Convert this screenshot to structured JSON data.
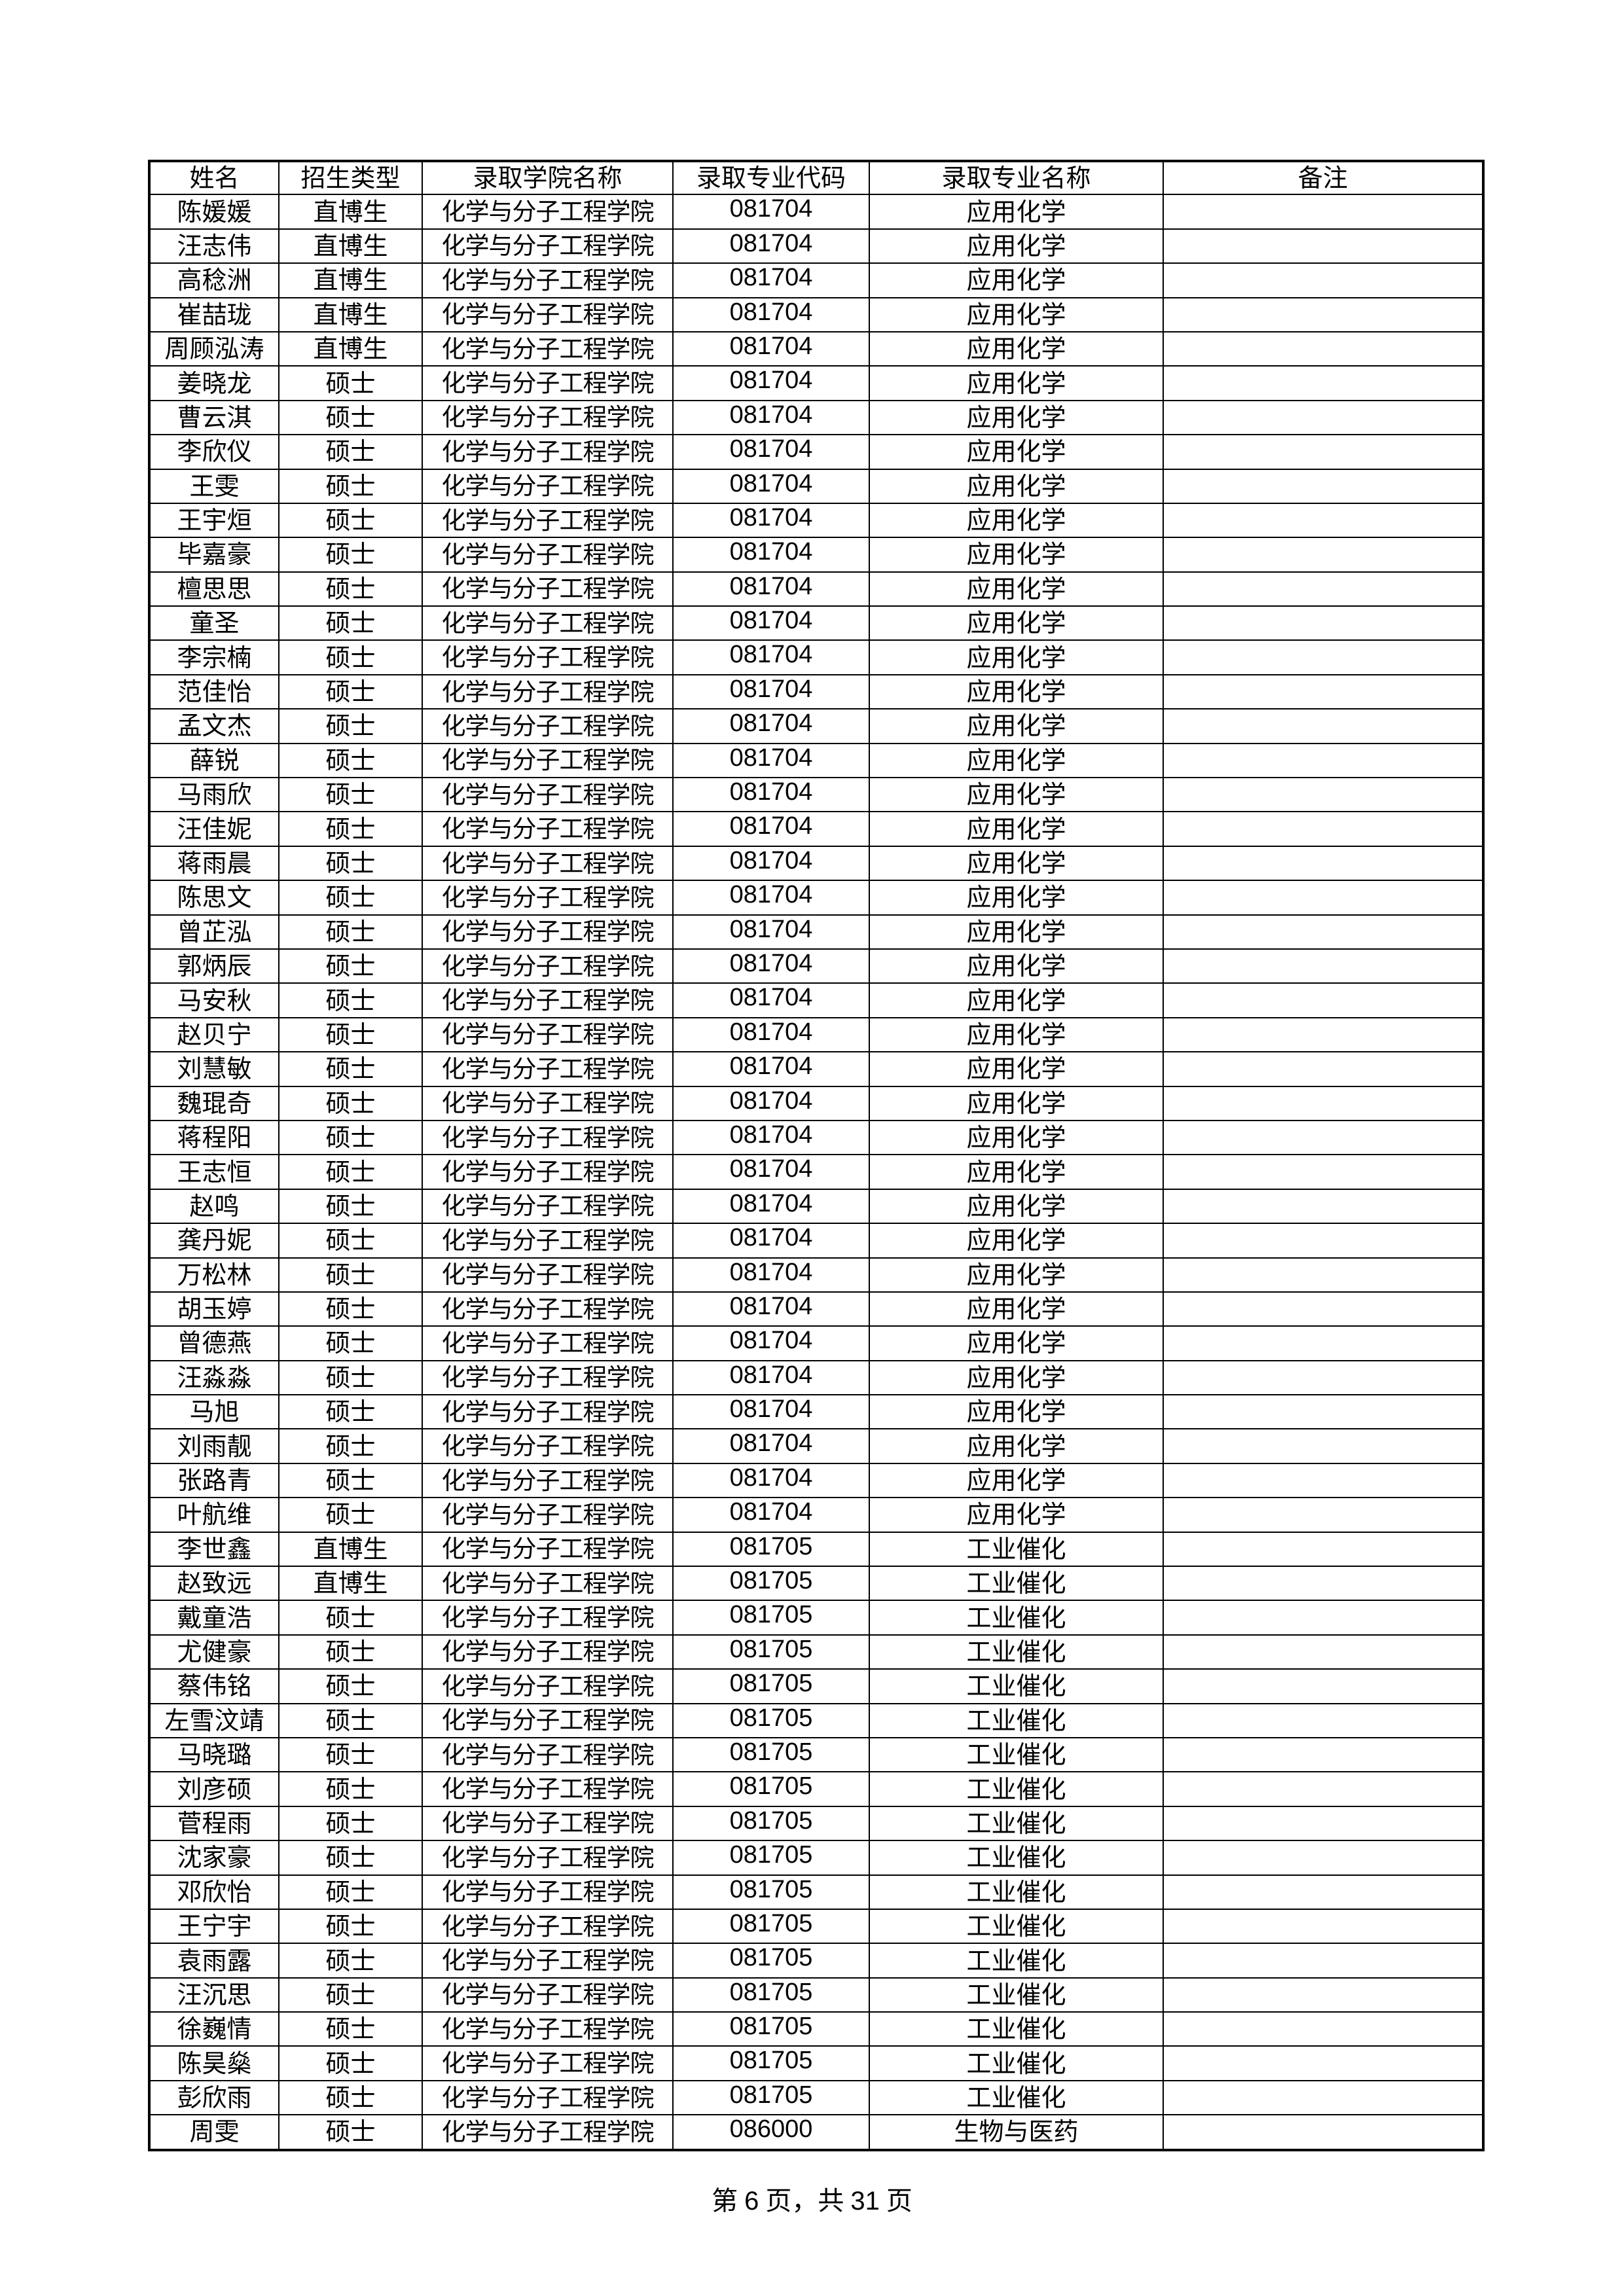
{
  "headers": [
    "姓名",
    "招生类型",
    "录取学院名称",
    "录取专业代码",
    "录取专业名称",
    "备注"
  ],
  "rows": [
    [
      "陈媛媛",
      "直博生",
      "化学与分子工程学院",
      "081704",
      "应用化学",
      ""
    ],
    [
      "汪志伟",
      "直博生",
      "化学与分子工程学院",
      "081704",
      "应用化学",
      ""
    ],
    [
      "高稔洲",
      "直博生",
      "化学与分子工程学院",
      "081704",
      "应用化学",
      ""
    ],
    [
      "崔喆珑",
      "直博生",
      "化学与分子工程学院",
      "081704",
      "应用化学",
      ""
    ],
    [
      "周顾泓涛",
      "直博生",
      "化学与分子工程学院",
      "081704",
      "应用化学",
      ""
    ],
    [
      "姜晓龙",
      "硕士",
      "化学与分子工程学院",
      "081704",
      "应用化学",
      ""
    ],
    [
      "曹云淇",
      "硕士",
      "化学与分子工程学院",
      "081704",
      "应用化学",
      ""
    ],
    [
      "李欣仪",
      "硕士",
      "化学与分子工程学院",
      "081704",
      "应用化学",
      ""
    ],
    [
      "王雯",
      "硕士",
      "化学与分子工程学院",
      "081704",
      "应用化学",
      ""
    ],
    [
      "王宇烜",
      "硕士",
      "化学与分子工程学院",
      "081704",
      "应用化学",
      ""
    ],
    [
      "毕嘉豪",
      "硕士",
      "化学与分子工程学院",
      "081704",
      "应用化学",
      ""
    ],
    [
      "檀思思",
      "硕士",
      "化学与分子工程学院",
      "081704",
      "应用化学",
      ""
    ],
    [
      "童圣",
      "硕士",
      "化学与分子工程学院",
      "081704",
      "应用化学",
      ""
    ],
    [
      "李宗楠",
      "硕士",
      "化学与分子工程学院",
      "081704",
      "应用化学",
      ""
    ],
    [
      "范佳怡",
      "硕士",
      "化学与分子工程学院",
      "081704",
      "应用化学",
      ""
    ],
    [
      "孟文杰",
      "硕士",
      "化学与分子工程学院",
      "081704",
      "应用化学",
      ""
    ],
    [
      "薛锐",
      "硕士",
      "化学与分子工程学院",
      "081704",
      "应用化学",
      ""
    ],
    [
      "马雨欣",
      "硕士",
      "化学与分子工程学院",
      "081704",
      "应用化学",
      ""
    ],
    [
      "汪佳妮",
      "硕士",
      "化学与分子工程学院",
      "081704",
      "应用化学",
      ""
    ],
    [
      "蒋雨晨",
      "硕士",
      "化学与分子工程学院",
      "081704",
      "应用化学",
      ""
    ],
    [
      "陈思文",
      "硕士",
      "化学与分子工程学院",
      "081704",
      "应用化学",
      ""
    ],
    [
      "曾芷泓",
      "硕士",
      "化学与分子工程学院",
      "081704",
      "应用化学",
      ""
    ],
    [
      "郭炳辰",
      "硕士",
      "化学与分子工程学院",
      "081704",
      "应用化学",
      ""
    ],
    [
      "马安秋",
      "硕士",
      "化学与分子工程学院",
      "081704",
      "应用化学",
      ""
    ],
    [
      "赵贝宁",
      "硕士",
      "化学与分子工程学院",
      "081704",
      "应用化学",
      ""
    ],
    [
      "刘慧敏",
      "硕士",
      "化学与分子工程学院",
      "081704",
      "应用化学",
      ""
    ],
    [
      "魏琨奇",
      "硕士",
      "化学与分子工程学院",
      "081704",
      "应用化学",
      ""
    ],
    [
      "蒋程阳",
      "硕士",
      "化学与分子工程学院",
      "081704",
      "应用化学",
      ""
    ],
    [
      "王志恒",
      "硕士",
      "化学与分子工程学院",
      "081704",
      "应用化学",
      ""
    ],
    [
      "赵鸣",
      "硕士",
      "化学与分子工程学院",
      "081704",
      "应用化学",
      ""
    ],
    [
      "龚丹妮",
      "硕士",
      "化学与分子工程学院",
      "081704",
      "应用化学",
      ""
    ],
    [
      "万松林",
      "硕士",
      "化学与分子工程学院",
      "081704",
      "应用化学",
      ""
    ],
    [
      "胡玉婷",
      "硕士",
      "化学与分子工程学院",
      "081704",
      "应用化学",
      ""
    ],
    [
      "曾德燕",
      "硕士",
      "化学与分子工程学院",
      "081704",
      "应用化学",
      ""
    ],
    [
      "汪淼淼",
      "硕士",
      "化学与分子工程学院",
      "081704",
      "应用化学",
      ""
    ],
    [
      "马旭",
      "硕士",
      "化学与分子工程学院",
      "081704",
      "应用化学",
      ""
    ],
    [
      "刘雨靓",
      "硕士",
      "化学与分子工程学院",
      "081704",
      "应用化学",
      ""
    ],
    [
      "张路青",
      "硕士",
      "化学与分子工程学院",
      "081704",
      "应用化学",
      ""
    ],
    [
      "叶航维",
      "硕士",
      "化学与分子工程学院",
      "081704",
      "应用化学",
      ""
    ],
    [
      "李世鑫",
      "直博生",
      "化学与分子工程学院",
      "081705",
      "工业催化",
      ""
    ],
    [
      "赵致远",
      "直博生",
      "化学与分子工程学院",
      "081705",
      "工业催化",
      ""
    ],
    [
      "戴童浩",
      "硕士",
      "化学与分子工程学院",
      "081705",
      "工业催化",
      ""
    ],
    [
      "尤健豪",
      "硕士",
      "化学与分子工程学院",
      "081705",
      "工业催化",
      ""
    ],
    [
      "蔡伟铭",
      "硕士",
      "化学与分子工程学院",
      "081705",
      "工业催化",
      ""
    ],
    [
      "左雪汶靖",
      "硕士",
      "化学与分子工程学院",
      "081705",
      "工业催化",
      ""
    ],
    [
      "马晓璐",
      "硕士",
      "化学与分子工程学院",
      "081705",
      "工业催化",
      ""
    ],
    [
      "刘彦硕",
      "硕士",
      "化学与分子工程学院",
      "081705",
      "工业催化",
      ""
    ],
    [
      "菅程雨",
      "硕士",
      "化学与分子工程学院",
      "081705",
      "工业催化",
      ""
    ],
    [
      "沈家豪",
      "硕士",
      "化学与分子工程学院",
      "081705",
      "工业催化",
      ""
    ],
    [
      "邓欣怡",
      "硕士",
      "化学与分子工程学院",
      "081705",
      "工业催化",
      ""
    ],
    [
      "王宁宇",
      "硕士",
      "化学与分子工程学院",
      "081705",
      "工业催化",
      ""
    ],
    [
      "袁雨露",
      "硕士",
      "化学与分子工程学院",
      "081705",
      "工业催化",
      ""
    ],
    [
      "汪沉思",
      "硕士",
      "化学与分子工程学院",
      "081705",
      "工业催化",
      ""
    ],
    [
      "徐巍情",
      "硕士",
      "化学与分子工程学院",
      "081705",
      "工业催化",
      ""
    ],
    [
      "陈昊燊",
      "硕士",
      "化学与分子工程学院",
      "081705",
      "工业催化",
      ""
    ],
    [
      "彭欣雨",
      "硕士",
      "化学与分子工程学院",
      "081705",
      "工业催化",
      ""
    ],
    [
      "周雯",
      "硕士",
      "化学与分子工程学院",
      "086000",
      "生物与医药",
      ""
    ]
  ],
  "footer": {
    "prefix": "第 ",
    "page": "6",
    "middle": " 页，共 ",
    "total": "31",
    "suffix": " 页"
  }
}
